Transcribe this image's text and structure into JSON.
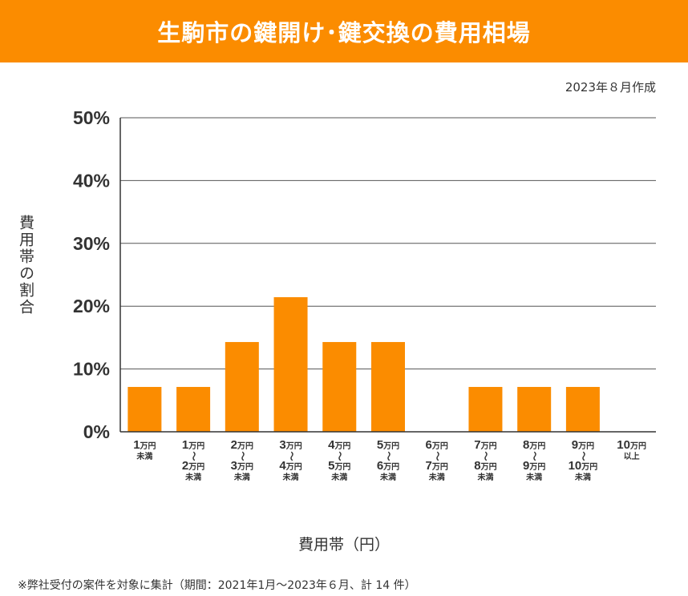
{
  "header": {
    "title": "生駒市の鍵開け･鍵交換の費用相場",
    "date": "2023年８月作成"
  },
  "footnote": "※弊社受付の案件を対象に集計（期間：2021年1月～2023年６月、計 14 件）",
  "chart_data": {
    "type": "bar",
    "xlabel": "費用帯（円）",
    "ylabel": "費用帯の割合",
    "ylim": [
      0,
      50
    ],
    "yticks": [
      "0%",
      "10%",
      "20%",
      "30%",
      "40%",
      "50%"
    ],
    "grid": true,
    "bar_color": "#fb8c00",
    "categories": [
      {
        "from": "1",
        "unit": "万円",
        "suffix": "未満"
      },
      {
        "from": "1",
        "to": "2",
        "unit": "万円",
        "tilde": "～",
        "suffix": "未満"
      },
      {
        "from": "2",
        "to": "3",
        "unit": "万円",
        "tilde": "～",
        "suffix": "未満"
      },
      {
        "from": "3",
        "to": "4",
        "unit": "万円",
        "tilde": "～",
        "suffix": "未満"
      },
      {
        "from": "4",
        "to": "5",
        "unit": "万円",
        "tilde": "～",
        "suffix": "未満"
      },
      {
        "from": "5",
        "to": "6",
        "unit": "万円",
        "tilde": "～",
        "suffix": "未満"
      },
      {
        "from": "6",
        "to": "7",
        "unit": "万円",
        "tilde": "～",
        "suffix": "未満"
      },
      {
        "from": "7",
        "to": "8",
        "unit": "万円",
        "tilde": "～",
        "suffix": "未満"
      },
      {
        "from": "8",
        "to": "9",
        "unit": "万円",
        "tilde": "～",
        "suffix": "未満"
      },
      {
        "from": "9",
        "to": "10",
        "unit": "万円",
        "tilde": "～",
        "suffix": "未満"
      },
      {
        "from": "10",
        "unit": "万円",
        "suffix": "以上"
      }
    ],
    "values": [
      7.14,
      7.14,
      14.29,
      21.43,
      14.29,
      14.29,
      0,
      7.14,
      7.14,
      7.14,
      0
    ]
  }
}
